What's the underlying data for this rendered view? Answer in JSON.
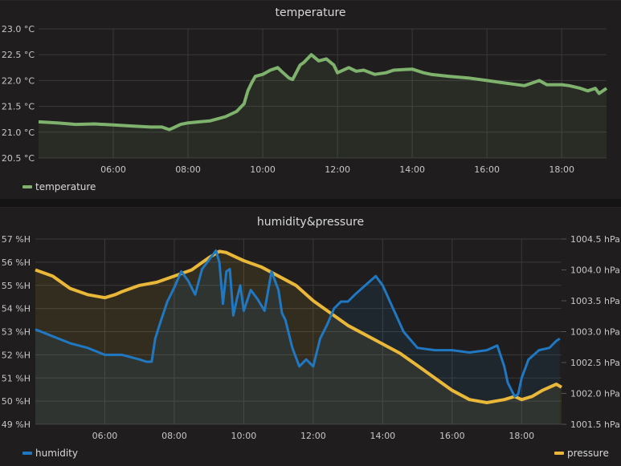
{
  "panels": [
    {
      "title": "temperature"
    },
    {
      "title": "humidity&pressure"
    }
  ],
  "legend": {
    "temperature": "temperature",
    "humidity": "humidity",
    "pressure": "pressure"
  },
  "colors": {
    "temperature": "#7eb26d",
    "humidity": "#1f78c1",
    "pressure": "#eab839",
    "grid": "#3a3a3a",
    "panel_bg": "#1f1d1d"
  },
  "chart_data": [
    {
      "type": "line",
      "title": "temperature",
      "xlabel": "",
      "ylabel": "",
      "x_ticks": [
        "06:00",
        "08:00",
        "10:00",
        "12:00",
        "14:00",
        "16:00",
        "18:00"
      ],
      "y_ticks": [
        "20.5 °C",
        "21.0 °C",
        "21.5 °C",
        "22.0 °C",
        "22.5 °C",
        "23.0 °C"
      ],
      "ylim": [
        20.5,
        23.0
      ],
      "xlim_hours": [
        4.0,
        19.2
      ],
      "grid": true,
      "legend_position": "bottom-left",
      "series": [
        {
          "name": "temperature",
          "unit": "°C",
          "x_hours": [
            4.0,
            4.5,
            5.0,
            5.5,
            6.0,
            6.5,
            7.0,
            7.3,
            7.5,
            7.6,
            7.8,
            8.0,
            8.3,
            8.6,
            9.0,
            9.3,
            9.5,
            9.6,
            9.7,
            9.8,
            10.0,
            10.2,
            10.4,
            10.5,
            10.7,
            10.8,
            11.0,
            11.1,
            11.3,
            11.5,
            11.7,
            11.9,
            12.0,
            12.3,
            12.5,
            12.7,
            13.0,
            13.3,
            13.5,
            14.0,
            14.3,
            14.5,
            15.0,
            15.5,
            16.0,
            16.5,
            17.0,
            17.2,
            17.4,
            17.6,
            18.0,
            18.2,
            18.5,
            18.7,
            18.9,
            19.0,
            19.2
          ],
          "values": [
            21.2,
            21.18,
            21.15,
            21.16,
            21.14,
            21.12,
            21.1,
            21.1,
            21.05,
            21.08,
            21.15,
            21.18,
            21.2,
            21.22,
            21.3,
            21.4,
            21.55,
            21.8,
            21.95,
            22.08,
            22.12,
            22.2,
            22.25,
            22.18,
            22.05,
            22.02,
            22.3,
            22.35,
            22.5,
            22.38,
            22.42,
            22.3,
            22.15,
            22.25,
            22.18,
            22.2,
            22.12,
            22.15,
            22.2,
            22.22,
            22.15,
            22.12,
            22.08,
            22.05,
            22.0,
            21.95,
            21.9,
            21.95,
            22.0,
            21.92,
            21.92,
            21.9,
            21.85,
            21.8,
            21.85,
            21.75,
            21.85
          ]
        }
      ]
    },
    {
      "type": "line",
      "title": "humidity&pressure",
      "xlabel": "",
      "ylabel": "",
      "x_ticks": [
        "06:00",
        "08:00",
        "10:00",
        "12:00",
        "14:00",
        "16:00",
        "18:00"
      ],
      "y_ticks_left": [
        "49 %H",
        "50 %H",
        "51 %H",
        "52 %H",
        "53 %H",
        "54 %H",
        "55 %H",
        "56 %H",
        "57 %H"
      ],
      "y_ticks_right": [
        "1001.5 hPa",
        "1002.0 hPa",
        "1002.5 hPa",
        "1003.0 hPa",
        "1003.5 hPa",
        "1004.0 hPa",
        "1004.5 hPa"
      ],
      "ylim_left": [
        49,
        57
      ],
      "ylim_right": [
        1001.5,
        1004.5
      ],
      "xlim_hours": [
        4.0,
        19.15
      ],
      "grid": true,
      "legend_position": "bottom",
      "series": [
        {
          "name": "humidity",
          "axis": "left",
          "unit": "%H",
          "x_hours": [
            4.0,
            4.5,
            5.0,
            5.5,
            6.0,
            6.5,
            7.0,
            7.2,
            7.35,
            7.45,
            7.6,
            7.8,
            8.0,
            8.2,
            8.4,
            8.6,
            8.8,
            9.0,
            9.2,
            9.3,
            9.4,
            9.5,
            9.6,
            9.7,
            9.8,
            9.9,
            10.0,
            10.2,
            10.4,
            10.6,
            10.8,
            11.0,
            11.1,
            11.2,
            11.4,
            11.6,
            11.8,
            12.0,
            12.2,
            12.4,
            12.6,
            12.8,
            13.0,
            13.2,
            13.5,
            13.8,
            14.0,
            14.3,
            14.6,
            15.0,
            15.5,
            16.0,
            16.5,
            17.0,
            17.3,
            17.5,
            17.6,
            17.8,
            17.9,
            18.0,
            18.2,
            18.5,
            18.8,
            19.0,
            19.1
          ],
          "values": [
            53.1,
            52.8,
            52.5,
            52.3,
            52.0,
            52.0,
            51.8,
            51.7,
            51.7,
            52.7,
            53.4,
            54.3,
            54.9,
            55.6,
            55.2,
            54.6,
            55.7,
            56.1,
            56.5,
            56.0,
            54.2,
            55.6,
            55.7,
            53.7,
            54.4,
            55.0,
            53.9,
            54.8,
            54.4,
            53.9,
            55.6,
            54.8,
            53.8,
            53.5,
            52.3,
            51.5,
            51.8,
            51.5,
            52.7,
            53.3,
            54.0,
            54.3,
            54.3,
            54.6,
            55.0,
            55.4,
            55.0,
            54.0,
            53.0,
            52.3,
            52.2,
            52.2,
            52.1,
            52.2,
            52.4,
            51.5,
            50.8,
            50.2,
            50.3,
            51.0,
            51.8,
            52.2,
            52.3,
            52.6,
            52.7
          ]
        },
        {
          "name": "pressure",
          "axis": "right",
          "unit": "hPa",
          "x_hours": [
            4.0,
            4.5,
            5.0,
            5.5,
            6.0,
            6.3,
            6.5,
            7.0,
            7.5,
            8.0,
            8.5,
            9.0,
            9.3,
            9.5,
            9.8,
            10.0,
            10.5,
            11.0,
            11.5,
            12.0,
            12.5,
            13.0,
            13.5,
            14.0,
            14.5,
            15.0,
            15.5,
            16.0,
            16.5,
            17.0,
            17.5,
            17.8,
            18.0,
            18.3,
            18.6,
            19.0,
            19.15
          ],
          "values": [
            1004.0,
            1003.9,
            1003.7,
            1003.6,
            1003.55,
            1003.6,
            1003.65,
            1003.75,
            1003.8,
            1003.9,
            1004.0,
            1004.2,
            1004.3,
            1004.28,
            1004.2,
            1004.15,
            1004.05,
            1003.9,
            1003.75,
            1003.5,
            1003.3,
            1003.1,
            1002.95,
            1002.8,
            1002.65,
            1002.45,
            1002.25,
            1002.05,
            1001.9,
            1001.85,
            1001.9,
            1001.95,
            1001.9,
            1001.95,
            1002.05,
            1002.15,
            1002.1
          ]
        }
      ]
    }
  ]
}
